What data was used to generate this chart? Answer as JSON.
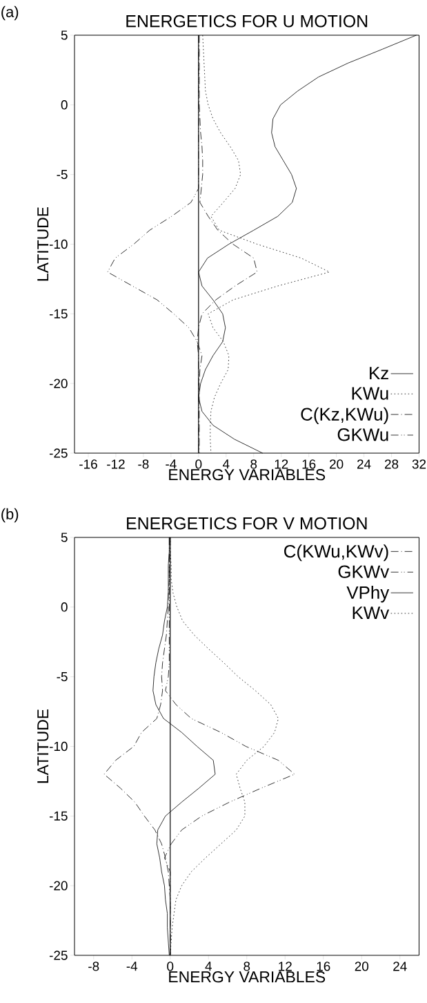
{
  "chart_data": [
    {
      "type": "line",
      "title": "ENERGETICS FOR U MOTION",
      "xlabel": "ENERGY VARIABLES",
      "ylabel": "LATITUDE",
      "annotations": [
        "(a)"
      ],
      "xlim": [
        -18,
        32
      ],
      "ylim": [
        -25,
        5
      ],
      "xticks": [
        -16,
        -12,
        -8,
        -4,
        0,
        4,
        8,
        12,
        16,
        20,
        24,
        28,
        32
      ],
      "yticks": [
        -25,
        -20,
        -15,
        -10,
        -5,
        0,
        5
      ],
      "legend": "bottom right",
      "ref_lines": [
        {
          "axis": "x",
          "value": 0
        }
      ],
      "series": [
        {
          "name": "Kz",
          "color": "#000000",
          "line_style": "solid",
          "x": [
            31.6,
            26.7,
            21.7,
            17.4,
            14.4,
            11.9,
            10.8,
            10.6,
            11.1,
            12.3,
            13.5,
            14.2,
            13.6,
            11.5,
            8.0,
            4.4,
            1.3,
            0,
            0.5,
            2.1,
            3.5,
            3.9,
            3.5,
            2.1,
            1.0,
            0.3,
            0,
            0.5,
            2.1,
            5.2,
            9.3
          ],
          "values": [
            5,
            4,
            3,
            2,
            1,
            0,
            -1,
            -2,
            -3,
            -4,
            -5,
            -6,
            -7,
            -8,
            -9,
            -10,
            -11,
            -12,
            -13,
            -14,
            -15,
            -16,
            -17,
            -18,
            -19,
            -20,
            -21,
            -22,
            -23,
            -24,
            -25
          ]
        },
        {
          "name": "KWu",
          "color": "#000000",
          "line_style": "dotted",
          "x": [
            0.6,
            0.7,
            0.8,
            0.9,
            1.0,
            1.4,
            2.1,
            3.2,
            4.6,
            5.8,
            6.1,
            5.3,
            3.6,
            1.8,
            3.0,
            8.5,
            14.9,
            19.0,
            11.5,
            5.0,
            1.4,
            2.1,
            3.6,
            4.4,
            4.3,
            3.2,
            2.3,
            1.8,
            1.7,
            1.7,
            1.8
          ],
          "values": [
            5,
            4,
            3,
            2,
            1,
            0,
            -1,
            -2,
            -3,
            -4,
            -5,
            -6,
            -7,
            -8,
            -9,
            -10,
            -11,
            -12,
            -13,
            -14,
            -15,
            -16,
            -17,
            -18,
            -19,
            -20,
            -21,
            -22,
            -23,
            -24,
            -25
          ]
        },
        {
          "name": "C(Kz,KWu)",
          "color": "#000000",
          "line_style": "dashdot",
          "x": [
            0.1,
            0.1,
            0.2,
            0.3,
            0.5,
            0.6,
            0.6,
            0.4,
            0.2,
            1.4,
            2.8,
            5.0,
            8.0,
            8.5,
            5.3,
            2.5,
            0.5,
            0,
            -0.2,
            0.5,
            0.2,
            0.1,
            0.1
          ],
          "values": [
            5,
            0,
            -1,
            -2,
            -3,
            -4,
            -5,
            -6,
            -7,
            -8,
            -9,
            -10,
            -11,
            -12,
            -13,
            -14,
            -15,
            -16,
            -17,
            -18,
            -19,
            -20,
            -25
          ]
        },
        {
          "name": "GKWu",
          "color": "#000000",
          "line_style": "dashdotdot",
          "x": [
            0,
            0,
            -1.1,
            -3.9,
            -7.1,
            -9.4,
            -12.1,
            -13.2,
            -9.6,
            -6.0,
            -3.6,
            -1.4,
            -0.2,
            0,
            0
          ],
          "values": [
            5,
            -6,
            -7,
            -8,
            -9,
            -10,
            -11,
            -12,
            -13,
            -14,
            -15,
            -16,
            -17,
            -18,
            -25
          ]
        }
      ]
    },
    {
      "type": "line",
      "title": "ENERGETICS FOR V MOTION",
      "xlabel": "ENERGY VARIABLES",
      "ylabel": "LATITUDE",
      "annotations": [
        "(b)"
      ],
      "xlim": [
        -10,
        26
      ],
      "ylim": [
        -25,
        5
      ],
      "xticks": [
        -8,
        -4,
        0,
        4,
        8,
        12,
        16,
        20,
        24
      ],
      "yticks": [
        -25,
        -20,
        -15,
        -10,
        -5,
        0,
        5
      ],
      "legend": "top right",
      "ref_lines": [
        {
          "axis": "x",
          "value": 0
        }
      ],
      "series": [
        {
          "name": "C(KWu,KWv)",
          "color": "#000000",
          "line_style": "dashdot",
          "x": [
            0,
            0,
            -0.1,
            -0.1,
            -0.2,
            -0.2,
            -0.3,
            -0.4,
            -0.6,
            -0.8,
            -0.9,
            -0.8,
            -1.0,
            -1.4,
            -3.0,
            -3.8,
            -5.7,
            -6.9,
            -5.2,
            -3.7,
            -2.7,
            -1.6,
            -0.9,
            -0.5,
            -0.2,
            -0.1,
            0,
            0
          ],
          "values": [
            5,
            4,
            3,
            2,
            1,
            0,
            -1,
            -2,
            -3,
            -4,
            -5,
            -6,
            -7,
            -8,
            -9,
            -10,
            -11,
            -12,
            -13,
            -14,
            -15,
            -16,
            -17,
            -18,
            -19,
            -20,
            -21,
            -25
          ]
        },
        {
          "name": "GKWv",
          "color": "#000000",
          "line_style": "dashdotdot",
          "x": [
            -0.1,
            -0.1,
            -0.2,
            -0.5,
            0.6,
            2.2,
            5.3,
            7.9,
            11.3,
            13.0,
            9.5,
            6.2,
            3.3,
            1.2,
            0.1,
            -0.6,
            0,
            0
          ],
          "values": [
            5,
            -4,
            -5,
            -6,
            -7,
            -8,
            -9,
            -10,
            -11,
            -12,
            -13,
            -14,
            -15,
            -16,
            -17,
            -18,
            -19,
            -25
          ]
        },
        {
          "name": "VPhy",
          "color": "#000000",
          "line_style": "solid",
          "x": [
            -0.1,
            -0.1,
            -0.2,
            -0.2,
            -0.3,
            -0.6,
            -0.8,
            -1.2,
            -1.5,
            -1.7,
            -1.8,
            -1.5,
            -0.7,
            1.2,
            2.8,
            4.5,
            4.7,
            3.0,
            1.2,
            -0.5,
            -1.3,
            -1.4,
            -1.1,
            -0.9,
            -0.6,
            -0.5,
            -0.3,
            -0.3,
            -0.1
          ],
          "values": [
            5,
            4,
            3,
            1,
            0,
            -1,
            -2,
            -3,
            -4,
            -5,
            -6,
            -7,
            -8,
            -9,
            -10,
            -11,
            -12,
            -13,
            -14,
            -15,
            -16,
            -17,
            -18,
            -19,
            -20,
            -21,
            -22,
            -23,
            -25
          ]
        },
        {
          "name": "KWv",
          "color": "#000000",
          "line_style": "dotted",
          "x": [
            0,
            0,
            0.1,
            0.1,
            0.3,
            0.7,
            1.3,
            2.5,
            4.0,
            5.6,
            7.1,
            8.9,
            10.5,
            11.3,
            10.9,
            9.8,
            8.0,
            6.9,
            7.3,
            7.8,
            7.8,
            6.9,
            5.3,
            3.7,
            2.2,
            1.2,
            0.6,
            0.4,
            0.2,
            0.1,
            0
          ],
          "values": [
            5,
            4,
            3,
            2,
            1,
            0,
            -1,
            -2,
            -3,
            -4,
            -5,
            -6,
            -7,
            -8,
            -9,
            -10,
            -11,
            -12,
            -13,
            -14,
            -15,
            -16,
            -17,
            -18,
            -19,
            -20,
            -21,
            -22,
            -23,
            -24,
            -25
          ]
        }
      ]
    }
  ]
}
